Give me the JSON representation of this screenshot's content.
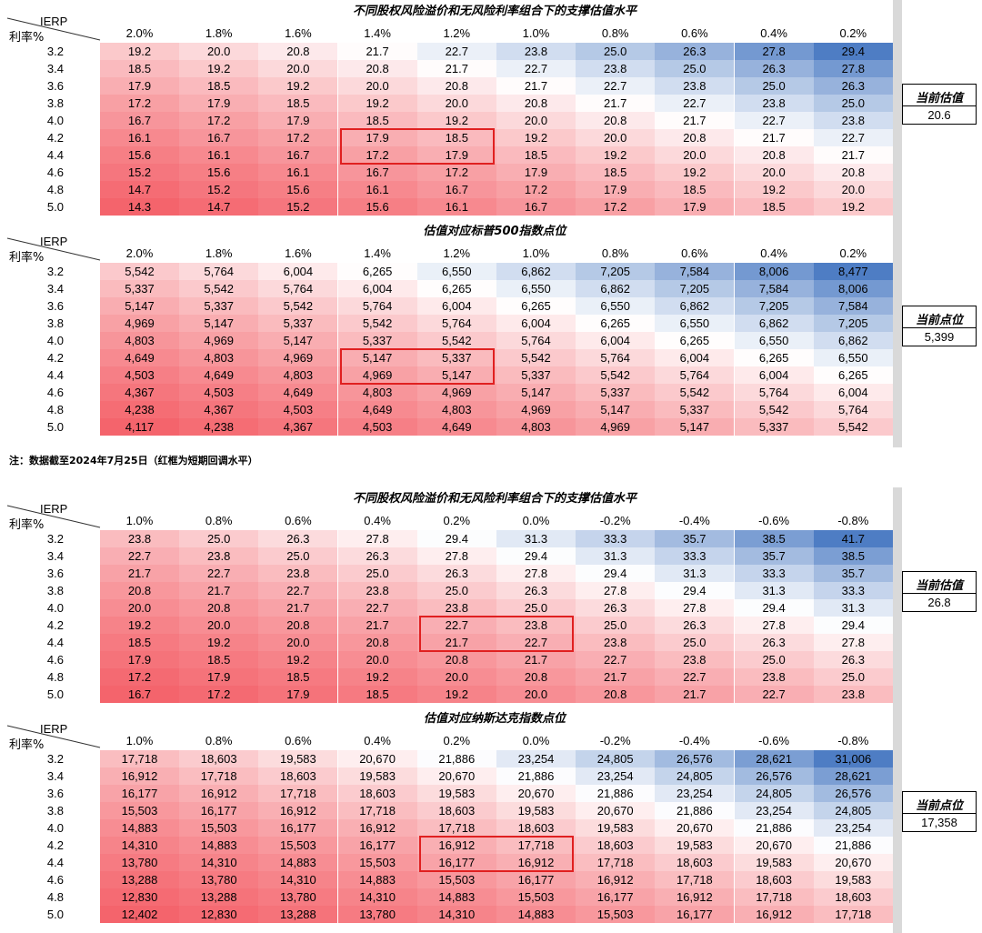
{
  "note": "注：数据截至2024年7月25日（红框为短期回调水平）",
  "chart_data": [
    {
      "type": "table",
      "title": "不同股权风险溢价和无风险利率组合下的支撑估值水平",
      "corner_col_label": "IERP",
      "corner_row_label": "利率%",
      "columns": [
        "2.0%",
        "1.8%",
        "1.6%",
        "1.4%",
        "1.2%",
        "1.0%",
        "0.8%",
        "0.6%",
        "0.4%",
        "0.2%"
      ],
      "rows": [
        "3.2",
        "3.4",
        "3.6",
        "3.8",
        "4.0",
        "4.2",
        "4.4",
        "4.6",
        "4.8",
        "5.0"
      ],
      "values": [
        [
          "19.2",
          "20.0",
          "20.8",
          "21.7",
          "22.7",
          "23.8",
          "25.0",
          "26.3",
          "27.8",
          "29.4"
        ],
        [
          "18.5",
          "19.2",
          "20.0",
          "20.8",
          "21.7",
          "22.7",
          "23.8",
          "25.0",
          "26.3",
          "27.8"
        ],
        [
          "17.9",
          "18.5",
          "19.2",
          "20.0",
          "20.8",
          "21.7",
          "22.7",
          "23.8",
          "25.0",
          "26.3"
        ],
        [
          "17.2",
          "17.9",
          "18.5",
          "19.2",
          "20.0",
          "20.8",
          "21.7",
          "22.7",
          "23.8",
          "25.0"
        ],
        [
          "16.7",
          "17.2",
          "17.9",
          "18.5",
          "19.2",
          "20.0",
          "20.8",
          "21.7",
          "22.7",
          "23.8"
        ],
        [
          "16.1",
          "16.7",
          "17.2",
          "17.9",
          "18.5",
          "19.2",
          "20.0",
          "20.8",
          "21.7",
          "22.7"
        ],
        [
          "15.6",
          "16.1",
          "16.7",
          "17.2",
          "17.9",
          "18.5",
          "19.2",
          "20.0",
          "20.8",
          "21.7"
        ],
        [
          "15.2",
          "15.6",
          "16.1",
          "16.7",
          "17.2",
          "17.9",
          "18.5",
          "19.2",
          "20.0",
          "20.8"
        ],
        [
          "14.7",
          "15.2",
          "15.6",
          "16.1",
          "16.7",
          "17.2",
          "17.9",
          "18.5",
          "19.2",
          "20.0"
        ],
        [
          "14.3",
          "14.7",
          "15.2",
          "15.6",
          "16.1",
          "16.7",
          "17.2",
          "17.9",
          "18.5",
          "19.2"
        ]
      ],
      "highlight": {
        "rows": [
          "4.2",
          "4.4"
        ],
        "columns": [
          "1.4%",
          "1.2%"
        ]
      },
      "side_label": "当前估值",
      "side_value": "20.6"
    },
    {
      "type": "table",
      "title": "估值对应标普500指数点位",
      "corner_col_label": "IERP",
      "corner_row_label": "利率%",
      "columns": [
        "2.0%",
        "1.8%",
        "1.6%",
        "1.4%",
        "1.2%",
        "1.0%",
        "0.8%",
        "0.6%",
        "0.4%",
        "0.2%"
      ],
      "rows": [
        "3.2",
        "3.4",
        "3.6",
        "3.8",
        "4.0",
        "4.2",
        "4.4",
        "4.6",
        "4.8",
        "5.0"
      ],
      "values": [
        [
          "5,542",
          "5,764",
          "6,004",
          "6,265",
          "6,550",
          "6,862",
          "7,205",
          "7,584",
          "8,006",
          "8,477"
        ],
        [
          "5,337",
          "5,542",
          "5,764",
          "6,004",
          "6,265",
          "6,550",
          "6,862",
          "7,205",
          "7,584",
          "8,006"
        ],
        [
          "5,147",
          "5,337",
          "5,542",
          "5,764",
          "6,004",
          "6,265",
          "6,550",
          "6,862",
          "7,205",
          "7,584"
        ],
        [
          "4,969",
          "5,147",
          "5,337",
          "5,542",
          "5,764",
          "6,004",
          "6,265",
          "6,550",
          "6,862",
          "7,205"
        ],
        [
          "4,803",
          "4,969",
          "5,147",
          "5,337",
          "5,542",
          "5,764",
          "6,004",
          "6,265",
          "6,550",
          "6,862"
        ],
        [
          "4,649",
          "4,803",
          "4,969",
          "5,147",
          "5,337",
          "5,542",
          "5,764",
          "6,004",
          "6,265",
          "6,550"
        ],
        [
          "4,503",
          "4,649",
          "4,803",
          "4,969",
          "5,147",
          "5,337",
          "5,542",
          "5,764",
          "6,004",
          "6,265"
        ],
        [
          "4,367",
          "4,503",
          "4,649",
          "4,803",
          "4,969",
          "5,147",
          "5,337",
          "5,542",
          "5,764",
          "6,004"
        ],
        [
          "4,238",
          "4,367",
          "4,503",
          "4,649",
          "4,803",
          "4,969",
          "5,147",
          "5,337",
          "5,542",
          "5,764"
        ],
        [
          "4,117",
          "4,238",
          "4,367",
          "4,503",
          "4,649",
          "4,803",
          "4,969",
          "5,147",
          "5,337",
          "5,542"
        ]
      ],
      "highlight": {
        "rows": [
          "4.2",
          "4.4"
        ],
        "columns": [
          "1.4%",
          "1.2%"
        ]
      },
      "side_label": "当前点位",
      "side_value": "5,399"
    },
    {
      "type": "table",
      "title": "不同股权风险溢价和无风险利率组合下的支撑估值水平",
      "corner_col_label": "IERP",
      "corner_row_label": "利率%",
      "columns": [
        "1.0%",
        "0.8%",
        "0.6%",
        "0.4%",
        "0.2%",
        "0.0%",
        "-0.2%",
        "-0.4%",
        "-0.6%",
        "-0.8%"
      ],
      "rows": [
        "3.2",
        "3.4",
        "3.6",
        "3.8",
        "4.0",
        "4.2",
        "4.4",
        "4.6",
        "4.8",
        "5.0"
      ],
      "values": [
        [
          "23.8",
          "25.0",
          "26.3",
          "27.8",
          "29.4",
          "31.3",
          "33.3",
          "35.7",
          "38.5",
          "41.7"
        ],
        [
          "22.7",
          "23.8",
          "25.0",
          "26.3",
          "27.8",
          "29.4",
          "31.3",
          "33.3",
          "35.7",
          "38.5"
        ],
        [
          "21.7",
          "22.7",
          "23.8",
          "25.0",
          "26.3",
          "27.8",
          "29.4",
          "31.3",
          "33.3",
          "35.7"
        ],
        [
          "20.8",
          "21.7",
          "22.7",
          "23.8",
          "25.0",
          "26.3",
          "27.8",
          "29.4",
          "31.3",
          "33.3"
        ],
        [
          "20.0",
          "20.8",
          "21.7",
          "22.7",
          "23.8",
          "25.0",
          "26.3",
          "27.8",
          "29.4",
          "31.3"
        ],
        [
          "19.2",
          "20.0",
          "20.8",
          "21.7",
          "22.7",
          "23.8",
          "25.0",
          "26.3",
          "27.8",
          "29.4"
        ],
        [
          "18.5",
          "19.2",
          "20.0",
          "20.8",
          "21.7",
          "22.7",
          "23.8",
          "25.0",
          "26.3",
          "27.8"
        ],
        [
          "17.9",
          "18.5",
          "19.2",
          "20.0",
          "20.8",
          "21.7",
          "22.7",
          "23.8",
          "25.0",
          "26.3"
        ],
        [
          "17.2",
          "17.9",
          "18.5",
          "19.2",
          "20.0",
          "20.8",
          "21.7",
          "22.7",
          "23.8",
          "25.0"
        ],
        [
          "16.7",
          "17.2",
          "17.9",
          "18.5",
          "19.2",
          "20.0",
          "20.8",
          "21.7",
          "22.7",
          "23.8"
        ]
      ],
      "highlight": {
        "rows": [
          "4.2",
          "4.4"
        ],
        "columns": [
          "0.2%",
          "0.0%"
        ]
      },
      "side_label": "当前估值",
      "side_value": "26.8"
    },
    {
      "type": "table",
      "title": "估值对应纳斯达克指数点位",
      "corner_col_label": "IERP",
      "corner_row_label": "利率%",
      "columns": [
        "1.0%",
        "0.8%",
        "0.6%",
        "0.4%",
        "0.2%",
        "0.0%",
        "-0.2%",
        "-0.4%",
        "-0.6%",
        "-0.8%"
      ],
      "rows": [
        "3.2",
        "3.4",
        "3.6",
        "3.8",
        "4.0",
        "4.2",
        "4.4",
        "4.6",
        "4.8",
        "5.0"
      ],
      "values": [
        [
          "17,718",
          "18,603",
          "19,583",
          "20,670",
          "21,886",
          "23,254",
          "24,805",
          "26,576",
          "28,621",
          "31,006"
        ],
        [
          "16,912",
          "17,718",
          "18,603",
          "19,583",
          "20,670",
          "21,886",
          "23,254",
          "24,805",
          "26,576",
          "28,621"
        ],
        [
          "16,177",
          "16,912",
          "17,718",
          "18,603",
          "19,583",
          "20,670",
          "21,886",
          "23,254",
          "24,805",
          "26,576"
        ],
        [
          "15,503",
          "16,177",
          "16,912",
          "17,718",
          "18,603",
          "19,583",
          "20,670",
          "21,886",
          "23,254",
          "24,805"
        ],
        [
          "14,883",
          "15,503",
          "16,177",
          "16,912",
          "17,718",
          "18,603",
          "19,583",
          "20,670",
          "21,886",
          "23,254"
        ],
        [
          "14,310",
          "14,883",
          "15,503",
          "16,177",
          "16,912",
          "17,718",
          "18,603",
          "19,583",
          "20,670",
          "21,886"
        ],
        [
          "13,780",
          "14,310",
          "14,883",
          "15,503",
          "16,177",
          "16,912",
          "17,718",
          "18,603",
          "19,583",
          "20,670"
        ],
        [
          "13,288",
          "13,780",
          "14,310",
          "14,883",
          "15,503",
          "16,177",
          "16,912",
          "17,718",
          "18,603",
          "19,583"
        ],
        [
          "12,830",
          "13,288",
          "13,780",
          "14,310",
          "14,883",
          "15,503",
          "16,177",
          "16,912",
          "17,718",
          "18,603"
        ],
        [
          "12,402",
          "12,830",
          "13,288",
          "13,780",
          "14,310",
          "14,883",
          "15,503",
          "16,177",
          "16,912",
          "17,718"
        ]
      ],
      "highlight": {
        "rows": [
          "4.2",
          "4.4"
        ],
        "columns": [
          "0.2%",
          "0.0%"
        ]
      },
      "side_label": "当前点位",
      "side_value": "17,358"
    }
  ]
}
